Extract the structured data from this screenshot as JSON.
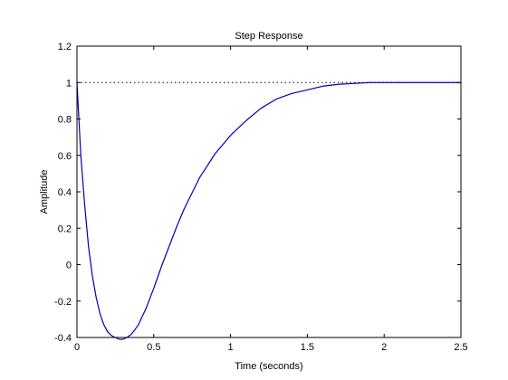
{
  "chart_data": {
    "type": "line",
    "title": "Step Response",
    "xlabel": "Time (seconds)",
    "ylabel": "Amplitude",
    "xlim": [
      0,
      2.5
    ],
    "ylim": [
      -0.4,
      1.2
    ],
    "xticks": [
      0,
      0.5,
      1,
      1.5,
      2,
      2.5
    ],
    "xtick_labels": [
      "0",
      "0.5",
      "1",
      "1.5",
      "2",
      "2.5"
    ],
    "yticks": [
      -0.4,
      -0.2,
      0,
      0.2,
      0.4,
      0.6,
      0.8,
      1,
      1.2
    ],
    "ytick_labels": [
      "-0.4",
      "-0.2",
      "0",
      "0.2",
      "0.4",
      "0.6",
      "0.8",
      "1",
      "1.2"
    ],
    "grid": false,
    "reference_line": {
      "y": 1,
      "style": "dotted",
      "color": "#000000"
    },
    "series": [
      {
        "color": "#0000b4",
        "x": [
          0,
          0.025,
          0.05,
          0.075,
          0.1,
          0.125,
          0.15,
          0.175,
          0.2,
          0.225,
          0.25,
          0.275,
          0.3,
          0.325,
          0.35,
          0.375,
          0.4,
          0.45,
          0.5,
          0.55,
          0.6,
          0.65,
          0.7,
          0.8,
          0.9,
          1.0,
          1.1,
          1.2,
          1.3,
          1.4,
          1.5,
          1.6,
          1.7,
          1.8,
          1.9,
          2.0,
          2.2,
          2.5
        ],
        "y": [
          1,
          0.6,
          0.33,
          0.1,
          -0.06,
          -0.18,
          -0.27,
          -0.33,
          -0.37,
          -0.39,
          -0.4,
          -0.41,
          -0.41,
          -0.4,
          -0.385,
          -0.36,
          -0.33,
          -0.24,
          -0.13,
          -0.01,
          0.1,
          0.21,
          0.31,
          0.48,
          0.61,
          0.71,
          0.79,
          0.86,
          0.91,
          0.94,
          0.96,
          0.98,
          0.99,
          0.995,
          1.0,
          1.0,
          1.0,
          1.0
        ]
      }
    ]
  }
}
